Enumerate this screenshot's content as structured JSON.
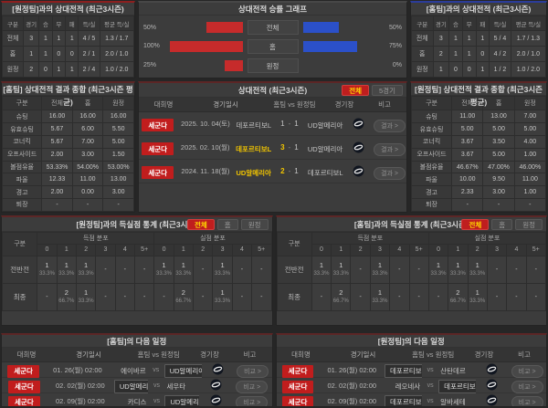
{
  "theme": {
    "red": "#c62b2b",
    "blue": "#2b50c9",
    "yellow": "#f2c500",
    "badge_red": "#c11d1d",
    "active_btn_bg": "#bf1e1e",
    "active_btn_text": "#ffd800"
  },
  "panels": {
    "h2h_home": {
      "title": "[원정팀]과의 상대전적 (최근3시즌)",
      "headers": [
        "구분",
        "경기",
        "승",
        "무",
        "패",
        "득/실",
        "평균 득/실"
      ],
      "rows": [
        {
          "label": "전체",
          "values": [
            "3",
            "1",
            "1",
            "1",
            "4 / 5",
            "1.3 / 1.7"
          ]
        },
        {
          "label": "홈",
          "values": [
            "1",
            "1",
            "0",
            "0",
            "2 / 1",
            "2.0 / 1.0"
          ]
        },
        {
          "label": "원정",
          "values": [
            "2",
            "0",
            "1",
            "1",
            "2 / 4",
            "1.0 / 2.0"
          ]
        }
      ]
    },
    "winrate": {
      "title": "상대전적 승률 그래프",
      "chart_data": {
        "type": "bar",
        "categories": [
          "전체",
          "홈",
          "원정"
        ],
        "series": [
          {
            "name": "home-red",
            "color": "#c62b2b",
            "values": [
              50,
              100,
              25
            ]
          },
          {
            "name": "away-blue",
            "color": "#2b50c9",
            "values": [
              50,
              75,
              0
            ]
          }
        ],
        "value_suffix": "%",
        "xlim": [
          0,
          100
        ],
        "legend": false
      }
    },
    "h2h_away": {
      "title": "[홈팀]과의 상대전적 (최근3시즌)",
      "headers": [
        "구분",
        "경기",
        "승",
        "무",
        "패",
        "득/실",
        "평균 득/실"
      ],
      "rows": [
        {
          "label": "전체",
          "values": [
            "3",
            "1",
            "1",
            "1",
            "5 / 4",
            "1.7 / 1.3"
          ]
        },
        {
          "label": "홈",
          "values": [
            "2",
            "1",
            "1",
            "0",
            "4 / 2",
            "2.0 / 1.0"
          ]
        },
        {
          "label": "원정",
          "values": [
            "1",
            "0",
            "0",
            "1",
            "1 / 2",
            "1.0 / 2.0"
          ]
        }
      ]
    },
    "stats_home": {
      "title": "[홈팀] 상대전적 결과 종합 (최근3시즌 평균)",
      "headers": [
        "구분",
        "전체",
        "홈",
        "원정"
      ],
      "rows": [
        {
          "label": "슈팅",
          "values": [
            "16.00",
            "16.00",
            "16.00"
          ]
        },
        {
          "label": "유효슈팅",
          "values": [
            "5.67",
            "6.00",
            "5.50"
          ]
        },
        {
          "label": "코너킥",
          "values": [
            "5.67",
            "7.00",
            "5.00"
          ]
        },
        {
          "label": "오프사이드",
          "values": [
            "2.00",
            "3.00",
            "1.50"
          ]
        },
        {
          "label": "볼점유율",
          "values": [
            "53.33%",
            "54.00%",
            "53.00%"
          ]
        },
        {
          "label": "파울",
          "values": [
            "12.33",
            "11.00",
            "13.00"
          ]
        },
        {
          "label": "경고",
          "values": [
            "2.00",
            "0.00",
            "3.00"
          ]
        },
        {
          "label": "퇴장",
          "values": [
            "-",
            "-",
            "-"
          ]
        }
      ]
    },
    "history": {
      "title": "상대전적 (최근3시즌)",
      "filters": [
        {
          "label": "전체",
          "active": true
        },
        {
          "label": "5경기",
          "active": false
        }
      ],
      "headers": [
        "대회명",
        "경기일시",
        "홈팀  vs  원정팀",
        "경기장",
        "비고"
      ],
      "result_label": "결과 >",
      "score_separator": "-",
      "rows": [
        {
          "league": "세군다",
          "date": "2025. 10. 04(토)",
          "home": "데포르티보L",
          "home_win": false,
          "score_home": "1",
          "score_away": "1",
          "away": "UD알메리아",
          "away_win": false
        },
        {
          "league": "세군다",
          "date": "2025. 02. 10(월)",
          "home": "데포르티보L",
          "home_win": true,
          "score_home": "3",
          "score_away": "1",
          "away": "UD알메리아",
          "away_win": false
        },
        {
          "league": "세군다",
          "date": "2024. 11. 18(월)",
          "home": "UD알메리아",
          "home_win": true,
          "score_home": "2",
          "score_away": "1",
          "away": "데포르티보L",
          "away_win": false
        }
      ]
    },
    "stats_away": {
      "title": "[원정팀] 상대전적 결과 종합 (최근3시즌 평균)",
      "headers": [
        "구분",
        "전체",
        "홈",
        "원정"
      ],
      "rows": [
        {
          "label": "슈팅",
          "values": [
            "11.00",
            "13.00",
            "7.00"
          ]
        },
        {
          "label": "유효슈팅",
          "values": [
            "5.00",
            "5.00",
            "5.00"
          ]
        },
        {
          "label": "코너킥",
          "values": [
            "3.67",
            "3.50",
            "4.00"
          ]
        },
        {
          "label": "오프사이드",
          "values": [
            "3.67",
            "5.00",
            "1.00"
          ]
        },
        {
          "label": "볼점유율",
          "values": [
            "46.67%",
            "47.00%",
            "46.00%"
          ]
        },
        {
          "label": "파울",
          "values": [
            "10.00",
            "9.50",
            "11.00"
          ]
        },
        {
          "label": "경고",
          "values": [
            "2.33",
            "3.00",
            "1.00"
          ]
        },
        {
          "label": "퇴장",
          "values": [
            "-",
            "-",
            "-"
          ]
        }
      ]
    },
    "goals_home": {
      "title": "[원정팀]과의 득실점 통계 (최근3시즌)",
      "filters": [
        {
          "label": "전체",
          "active": true
        },
        {
          "label": "홈",
          "active": false
        },
        {
          "label": "원정",
          "active": false
        }
      ],
      "col_label": "구분",
      "groups": [
        "득점 분포",
        "실점 분포"
      ],
      "bins": [
        "0",
        "1",
        "2",
        "3",
        "4",
        "5+"
      ],
      "rows": [
        {
          "label": "전반전",
          "scored": [
            "1|33.3%",
            "1|33.3%",
            "1|33.3%",
            "-",
            "-",
            "-"
          ],
          "conceded": [
            "1|33.3%",
            "1|33.3%",
            "-",
            "1|33.3%",
            "-",
            "-"
          ]
        },
        {
          "label": "최종",
          "scored": [
            "-",
            "2|66.7%",
            "1|33.3%",
            "-",
            "-",
            "-"
          ],
          "conceded": [
            "-",
            "2|66.7%",
            "-",
            "1|33.3%",
            "-",
            "-"
          ]
        }
      ]
    },
    "goals_away": {
      "title": "[홈팀]과의 득실점 통계 (최근3시즌)",
      "filters": [
        {
          "label": "전체",
          "active": true
        },
        {
          "label": "홈",
          "active": false
        },
        {
          "label": "원정",
          "active": false
        }
      ],
      "col_label": "구분",
      "groups": [
        "득점 분포",
        "실점 분포"
      ],
      "bins": [
        "0",
        "1",
        "2",
        "3",
        "4",
        "5+"
      ],
      "rows": [
        {
          "label": "전반전",
          "scored": [
            "1|33.3%",
            "1|33.3%",
            "-",
            "1|33.3%",
            "-",
            "-"
          ],
          "conceded": [
            "1|33.3%",
            "1|33.3%",
            "1|33.3%",
            "-",
            "-",
            "-"
          ]
        },
        {
          "label": "최종",
          "scored": [
            "-",
            "2|66.7%",
            "-",
            "1|33.3%",
            "-",
            "-"
          ],
          "conceded": [
            "-",
            "2|66.7%",
            "1|33.3%",
            "-",
            "-",
            "-"
          ]
        }
      ]
    },
    "schedule_home": {
      "title": "[홈팀]의 다음 일정",
      "headers": [
        "대회명",
        "경기일시",
        "홈팀  vs  원정팀",
        "경기장",
        "비고"
      ],
      "vs_label": "vs",
      "compare_label": "비교 >",
      "rows": [
        {
          "league": "세군다",
          "date": "01. 26(월) 02:00",
          "home": "에이바르",
          "home_focus": false,
          "away": "UD알메리아",
          "away_focus": true
        },
        {
          "league": "세군다",
          "date": "02. 02(월) 02:00",
          "home": "UD알메리아",
          "home_focus": true,
          "away": "세우타",
          "away_focus": false
        },
        {
          "league": "세군다",
          "date": "02. 09(월) 02:00",
          "home": "카디스",
          "home_focus": false,
          "away": "UD알메리아",
          "away_focus": true
        }
      ]
    },
    "schedule_away": {
      "title": "[원정팀]의 다음 일정",
      "headers": [
        "대회명",
        "경기일시",
        "홈팀  vs  원정팀",
        "경기장",
        "비고"
      ],
      "vs_label": "vs",
      "compare_label": "비교 >",
      "rows": [
        {
          "league": "세군다",
          "date": "01. 26(월) 02:00",
          "home": "데포르티보L",
          "home_focus": true,
          "away": "산탄데르",
          "away_focus": false
        },
        {
          "league": "세군다",
          "date": "02. 02(월) 02:00",
          "home": "레오네사",
          "home_focus": false,
          "away": "데포르티보L",
          "away_focus": true
        },
        {
          "league": "세군다",
          "date": "02. 09(월) 02:00",
          "home": "데포르티보L",
          "home_focus": true,
          "away": "알바세테",
          "away_focus": false
        }
      ]
    }
  }
}
